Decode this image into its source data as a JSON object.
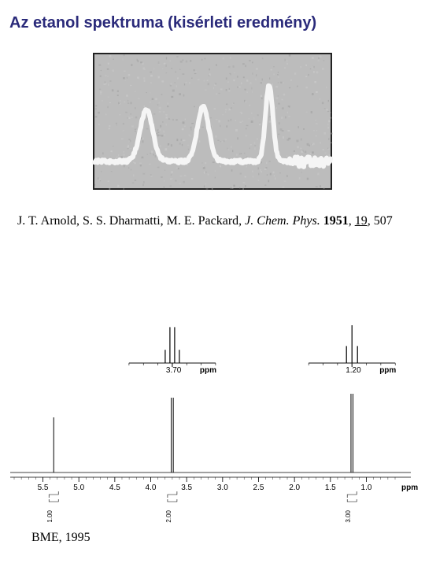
{
  "title": "Az etanol  spektruma (kisérleti eredmény)",
  "citation": {
    "authors": "J. T. Arnold, S. S. Dharmatti, M. E. Packard, ",
    "journal": "J. Chem. Phys.",
    "year": "1951",
    "volume": "19",
    "page": "507"
  },
  "footer": "BME, 1995",
  "old_spectrum": {
    "background_color": "#bcbcbc",
    "trace_color": "#f5f5f5",
    "trace_width": 6,
    "noise_color": "#ececec",
    "peaks": [
      {
        "x": 0.22,
        "height": 0.55,
        "width": 0.12
      },
      {
        "x": 0.46,
        "height": 0.58,
        "width": 0.11
      },
      {
        "x": 0.74,
        "height": 0.82,
        "width": 0.07
      }
    ],
    "baseline_y": 0.8
  },
  "inset_left": {
    "type": "multiplet",
    "center_ppm": 3.7,
    "n_lines": 4,
    "line_heights": [
      0.35,
      0.95,
      0.95,
      0.35
    ],
    "line_spacing": 6,
    "tick_label": "3.70",
    "ppm_label": "ppm",
    "line_color": "#000000",
    "line_width": 1.2
  },
  "inset_right": {
    "type": "multiplet",
    "center_ppm": 1.2,
    "n_lines": 3,
    "line_heights": [
      0.45,
      1.0,
      0.45
    ],
    "line_spacing": 7,
    "tick_label": "1.20",
    "ppm_label": "ppm",
    "line_color": "#000000",
    "line_width": 1.2
  },
  "main_spectrum": {
    "type": "nmr-1d",
    "xlim_ppm": [
      5.9,
      0.6
    ],
    "xticks": [
      5.5,
      5.0,
      4.5,
      4.0,
      3.5,
      3.0,
      2.5,
      2.0,
      1.5,
      1.0
    ],
    "xlabel": "ppm",
    "baseline_color": "#000000",
    "peak_color": "#000000",
    "line_width": 1.0,
    "peaks": [
      {
        "ppm": 5.35,
        "height": 0.7,
        "integral_label": "1.00",
        "integral_bracket": true
      },
      {
        "ppm": 3.7,
        "height": 0.95,
        "integral_label": "2.00",
        "integral_bracket": true,
        "split": 2
      },
      {
        "ppm": 1.2,
        "height": 1.0,
        "integral_label": "3.00",
        "integral_bracket": true,
        "split": 2
      }
    ]
  },
  "colors": {
    "title": "#2a2a7a",
    "text": "#000000",
    "bg": "#ffffff"
  },
  "fonts": {
    "title_family": "Arial",
    "title_size_pt": 16,
    "body_family": "Times New Roman",
    "body_size_pt": 13,
    "axis_size_pt": 8
  }
}
